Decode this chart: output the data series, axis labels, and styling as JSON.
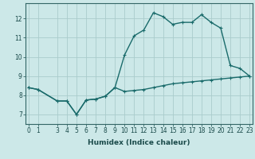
{
  "xlabel": "Humidex (Indice chaleur)",
  "background_color": "#cce8e8",
  "grid_color": "#aacccc",
  "line_color": "#1a6b6b",
  "line1_x": [
    0,
    1,
    3,
    4,
    5,
    6,
    7,
    8,
    9,
    10,
    11,
    12,
    13,
    14,
    15,
    16,
    17,
    18,
    19,
    20,
    21,
    22,
    23
  ],
  "line1_y": [
    8.4,
    8.3,
    7.7,
    7.7,
    7.0,
    7.75,
    7.8,
    7.95,
    8.4,
    8.2,
    8.25,
    8.3,
    8.4,
    8.5,
    8.6,
    8.65,
    8.7,
    8.75,
    8.8,
    8.85,
    8.9,
    8.95,
    9.0
  ],
  "line2_x": [
    0,
    1,
    3,
    4,
    5,
    6,
    7,
    8,
    9,
    10,
    11,
    12,
    13,
    14,
    15,
    16,
    17,
    18,
    19,
    20,
    21,
    22,
    23
  ],
  "line2_y": [
    8.4,
    8.3,
    7.7,
    7.7,
    7.0,
    7.75,
    7.8,
    7.95,
    8.4,
    10.1,
    11.1,
    11.4,
    12.3,
    12.1,
    11.7,
    11.8,
    11.8,
    12.2,
    11.8,
    11.5,
    9.55,
    9.4,
    9.0
  ],
  "ylim": [
    6.5,
    12.8
  ],
  "yticks": [
    7,
    8,
    9,
    10,
    11,
    12
  ],
  "xticks": [
    0,
    1,
    3,
    4,
    5,
    6,
    7,
    8,
    9,
    10,
    11,
    12,
    13,
    14,
    15,
    16,
    17,
    18,
    19,
    20,
    21,
    22,
    23
  ],
  "xlim": [
    -0.3,
    23.3
  ],
  "marker": "+",
  "markersize": 3,
  "linewidth": 1.0,
  "tick_fontsize": 5.5,
  "xlabel_fontsize": 6.5
}
